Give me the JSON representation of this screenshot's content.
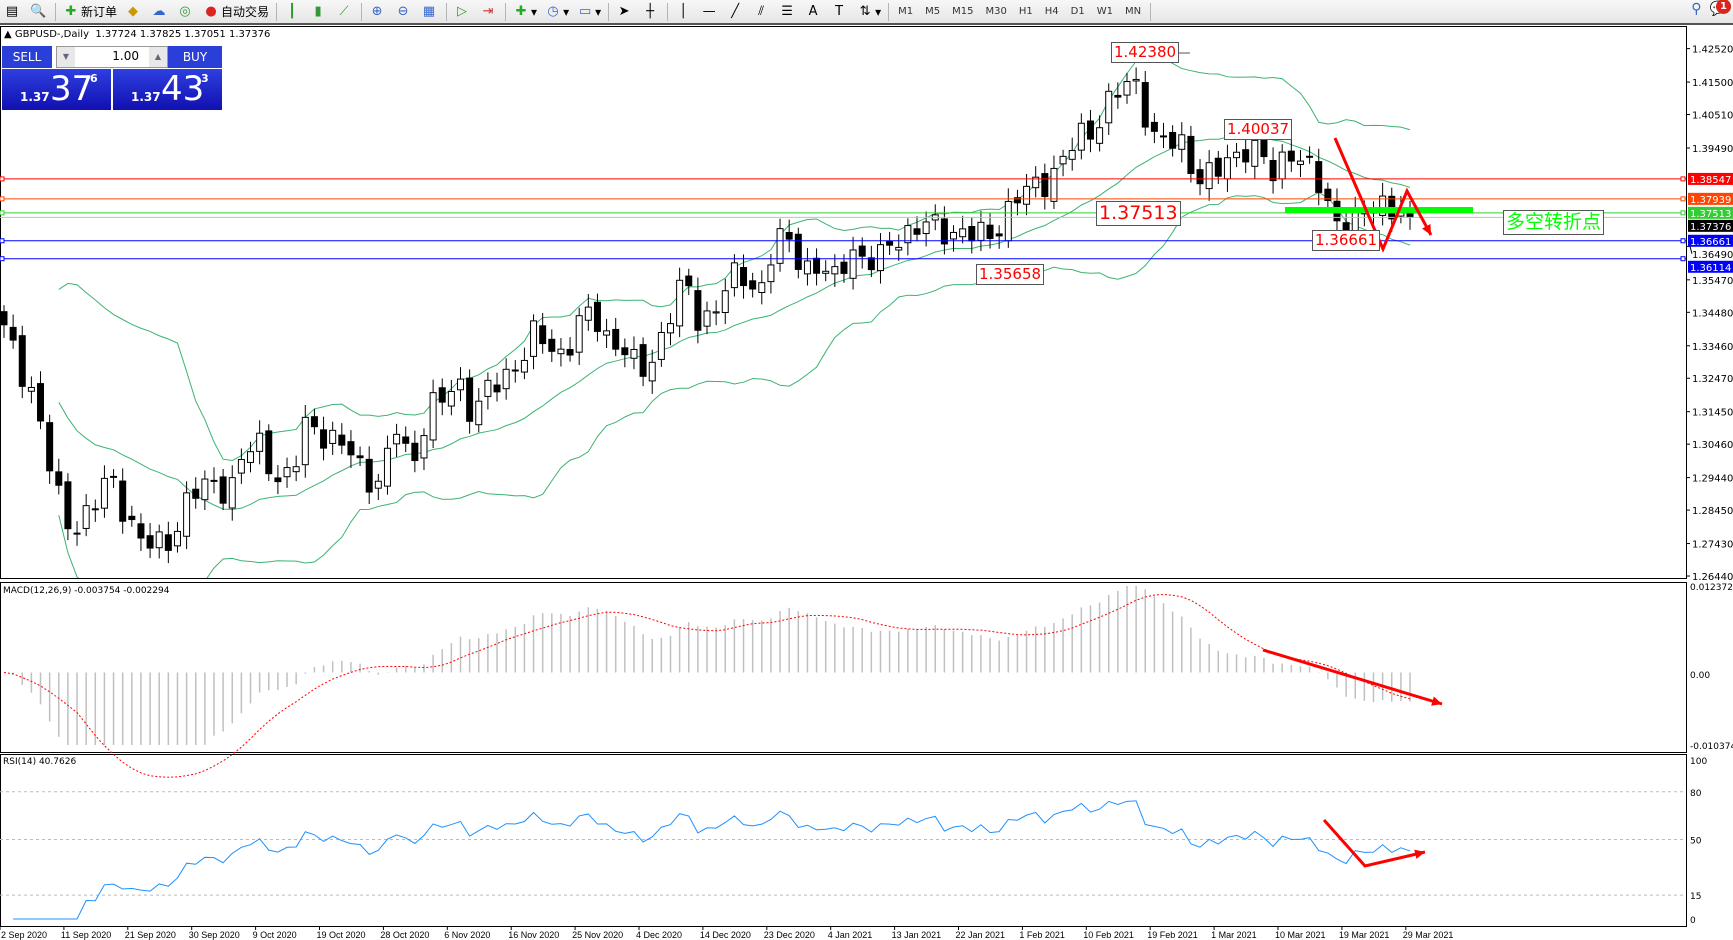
{
  "toolbar": {
    "new_order": "新订单",
    "auto_trading": "自动交易",
    "timeframes": [
      "M1",
      "M5",
      "M15",
      "M30",
      "H1",
      "H4",
      "D1",
      "W1",
      "MN"
    ],
    "notification_count": "1",
    "icons": [
      "file-icon",
      "zoom-magnifier-icon",
      "new-order-icon",
      "meta-editor-icon",
      "market-watch-icon",
      "signal-icon",
      "auto-trading-icon",
      "bar-chart-icon",
      "candlestick-icon",
      "line-chart-icon",
      "zoom-in-icon",
      "zoom-out-icon",
      "tile-windows-icon",
      "chart-shift-icon",
      "autoscroll-icon",
      "indicators-icon",
      "periods-icon",
      "templates-icon",
      "cursor-icon",
      "crosshair-icon",
      "vertical-line-icon",
      "horizontal-line-icon",
      "trendline-icon",
      "equidistant-channel-icon",
      "fibonacci-icon",
      "text-icon",
      "text-label-icon",
      "arrows-icon",
      "search-icon",
      "chat-icon"
    ]
  },
  "chart": {
    "symbol_header": "GBPUSD-,Daily",
    "ohlc": "1.37724 1.37825 1.37051 1.37376"
  },
  "trade_panel": {
    "sell_label": "SELL",
    "buy_label": "BUY",
    "lot": "1.00",
    "sell_prefix": "1.37",
    "sell_big": "37",
    "sell_sup": "6",
    "buy_prefix": "1.37",
    "buy_big": "43",
    "buy_sup": "3"
  },
  "chart_data": {
    "type": "candlestick",
    "price_axis_ticks": [
      "1.42520",
      "1.41500",
      "1.40510",
      "1.39490",
      "1.36490",
      "1.35470",
      "1.34480",
      "1.33460",
      "1.32470",
      "1.31450",
      "1.30460",
      "1.29440",
      "1.28450",
      "1.27430",
      "1.26440"
    ],
    "date_labels": [
      "2 Sep 2020",
      "11 Sep 2020",
      "21 Sep 2020",
      "30 Sep 2020",
      "9 Oct 2020",
      "19 Oct 2020",
      "28 Oct 2020",
      "6 Nov 2020",
      "16 Nov 2020",
      "25 Nov 2020",
      "4 Dec 2020",
      "14 Dec 2020",
      "23 Dec 2020",
      "4 Jan 2021",
      "13 Jan 2021",
      "22 Jan 2021",
      "1 Feb 2021",
      "10 Feb 2021",
      "19 Feb 2021",
      "1 Mar 2021",
      "10 Mar 2021",
      "19 Mar 2021",
      "29 Mar 2021"
    ],
    "price_range": [
      1.2644,
      1.4252
    ],
    "closes": [
      1.339,
      1.329,
      1.32,
      1.298,
      1.281,
      1.281,
      1.286,
      1.295,
      1.285,
      1.275,
      1.273,
      1.276,
      1.286,
      1.291,
      1.293,
      1.291,
      1.302,
      1.305,
      1.295,
      1.293,
      1.312,
      1.309,
      1.304,
      1.302,
      1.295,
      1.293,
      1.31,
      1.298,
      1.315,
      1.317,
      1.325,
      1.314,
      1.32,
      1.325,
      1.33,
      1.337,
      1.335,
      1.332,
      1.341,
      1.344,
      1.337,
      1.334,
      1.325,
      1.332,
      1.344,
      1.354,
      1.342,
      1.346,
      1.354,
      1.356,
      1.351,
      1.366,
      1.366,
      1.359,
      1.358,
      1.354,
      1.366,
      1.359,
      1.361,
      1.369,
      1.369,
      1.371,
      1.371,
      1.369,
      1.368,
      1.368,
      1.373,
      1.379,
      1.383,
      1.386,
      1.39,
      1.398,
      1.401,
      1.408,
      1.413,
      1.415,
      1.398,
      1.396,
      1.396,
      1.386,
      1.386,
      1.391,
      1.396,
      1.393,
      1.386,
      1.396,
      1.39,
      1.383,
      1.374,
      1.371,
      1.374,
      1.379,
      1.377,
      1.37376
    ],
    "horizontal_lines": [
      {
        "price": "1.38547",
        "color": "#ff0000"
      },
      {
        "price": "1.37939",
        "color": "#ff4500"
      },
      {
        "price": "1.37513",
        "color": "#32cd32"
      },
      {
        "price": "1.37376",
        "color": "#c0c0c0",
        "label_color": "#000000"
      },
      {
        "price": "1.36661",
        "color": "#0000ff"
      },
      {
        "price": "1.36114",
        "color": "#0000ff"
      }
    ],
    "annotations": [
      "1.42380",
      "1.40037",
      "1.37513",
      "1.36661",
      "1.35658"
    ],
    "pivot_text": "多空转折点",
    "bollinger_color": "#3cb371",
    "macd": {
      "label": "MACD(12,26,9) -0.003754 -0.002294",
      "ticks": [
        "0.012372",
        "0.00",
        "-0.010374"
      ],
      "range": [
        -0.010374,
        0.012372
      ]
    },
    "rsi": {
      "label": "RSI(14) 40.7626",
      "ticks": [
        "100",
        "80",
        "50",
        "15",
        "0"
      ],
      "color": "#1e90ff"
    }
  }
}
